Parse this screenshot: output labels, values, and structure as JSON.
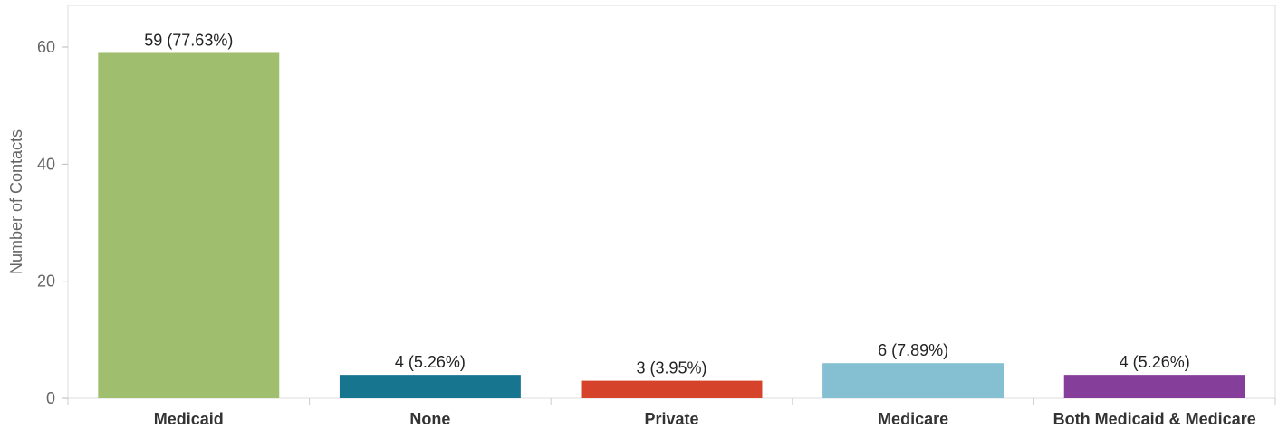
{
  "chart_data": {
    "type": "bar",
    "title": "",
    "xlabel": "",
    "ylabel": "Number of Contacts",
    "ylim": [
      0,
      66
    ],
    "yticks": [
      0,
      20,
      40,
      60
    ],
    "categories": [
      "Medicaid",
      "None",
      "Private",
      "Medicare",
      "Both Medicaid & Medicare"
    ],
    "values": [
      59,
      4,
      3,
      6,
      4
    ],
    "data_labels": [
      "59 (77.63%)",
      "4 (5.26%)",
      "3 (3.95%)",
      "6 (7.89%)",
      "4 (5.26%)"
    ],
    "colors": [
      "#9fbe6e",
      "#18758f",
      "#d5432a",
      "#85bfd2",
      "#853f9b"
    ],
    "grid": false
  }
}
